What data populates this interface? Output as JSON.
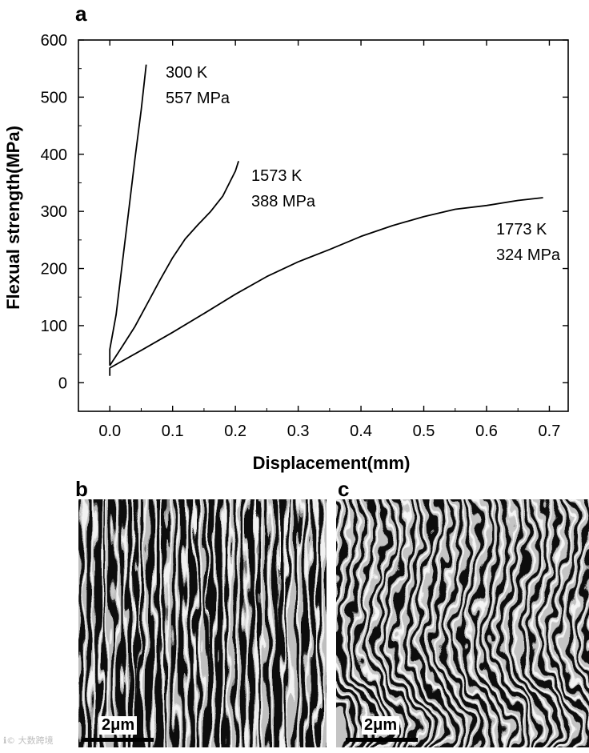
{
  "panel_labels": {
    "a": "a",
    "b": "b",
    "c": "c"
  },
  "chart_data": {
    "type": "line",
    "title": "",
    "xlabel": "Displacement(mm)",
    "ylabel": "Flexual strength(MPa)",
    "xlim": [
      -0.05,
      0.73
    ],
    "ylim": [
      -50,
      600
    ],
    "xticks": [
      "0.0",
      "0.1",
      "0.2",
      "0.3",
      "0.4",
      "0.5",
      "0.6",
      "0.7"
    ],
    "xtick_values": [
      0.0,
      0.1,
      0.2,
      0.3,
      0.4,
      0.5,
      0.6,
      0.7
    ],
    "yticks": [
      "0",
      "100",
      "200",
      "300",
      "400",
      "500",
      "600"
    ],
    "ytick_values": [
      0,
      100,
      200,
      300,
      400,
      500,
      600
    ],
    "grid": false,
    "series": [
      {
        "name": "300 K",
        "annotation": [
          "300 K",
          "557 MPa"
        ],
        "x": [
          0.0,
          0.0,
          0.01,
          0.02,
          0.03,
          0.04,
          0.05,
          0.058
        ],
        "y": [
          30,
          60,
          120,
          210,
          300,
          390,
          480,
          557
        ]
      },
      {
        "name": "1573 K",
        "annotation": [
          "1573 K",
          "388 MPa"
        ],
        "x": [
          0.0,
          0.02,
          0.04,
          0.06,
          0.08,
          0.1,
          0.12,
          0.14,
          0.16,
          0.18,
          0.2,
          0.205
        ],
        "y": [
          30,
          62,
          100,
          140,
          180,
          218,
          250,
          278,
          300,
          327,
          370,
          388
        ]
      },
      {
        "name": "1773 K",
        "annotation": [
          "1773 K",
          "324 MPa"
        ],
        "x": [
          0.0,
          0.0,
          0.05,
          0.1,
          0.15,
          0.2,
          0.25,
          0.3,
          0.35,
          0.4,
          0.45,
          0.5,
          0.55,
          0.6,
          0.65,
          0.69
        ],
        "y": [
          12,
          25,
          55,
          90,
          122,
          155,
          185,
          210,
          235,
          257,
          275,
          290,
          302,
          312,
          320,
          324
        ]
      }
    ]
  },
  "micrographs": {
    "b": {
      "scale_label": "2μm"
    },
    "c": {
      "scale_label": "2μm"
    }
  },
  "watermark": "ℹ© 大数跨境"
}
